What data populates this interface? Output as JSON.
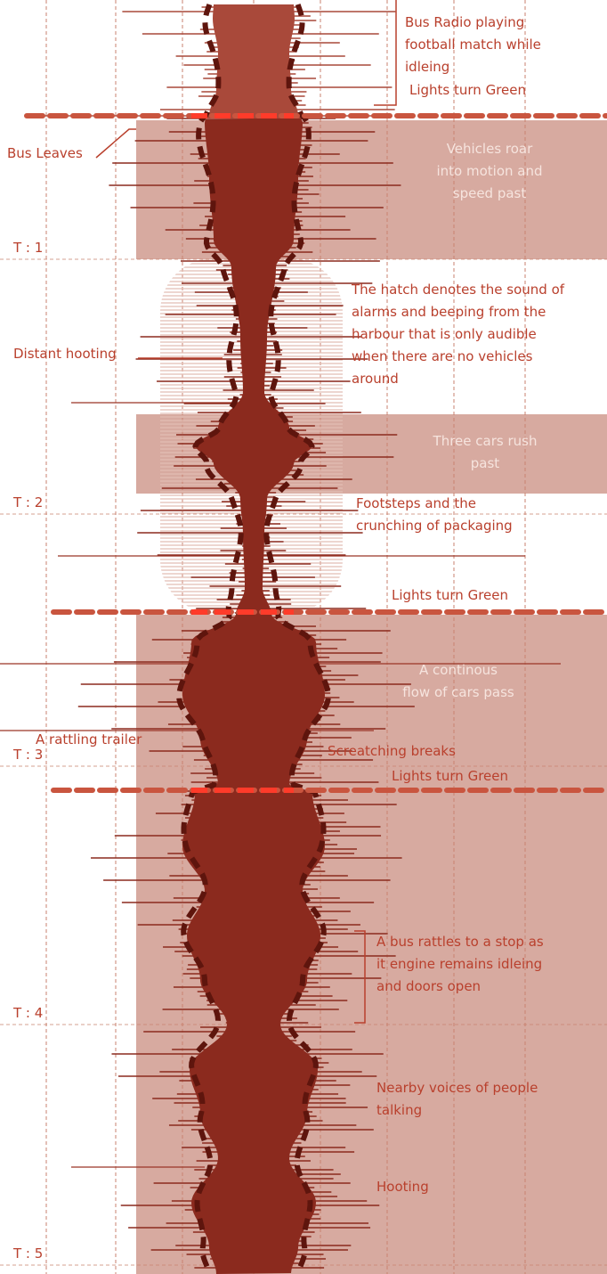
{
  "annotations": [
    {
      "lines": [
        "Bus Radio playing",
        "football match while",
        "idleing"
      ]
    },
    {
      "lines": [
        "Lights turn Green"
      ]
    },
    {
      "lines": [
        "Bus Leaves"
      ]
    },
    {
      "lines": [
        "Vehicles roar",
        "into motion and",
        "speed past"
      ]
    },
    {
      "lines": [
        "The hatch denotes the sound of",
        "alarms and beeping from the",
        "harbour that is only audible",
        "when there are no vehicles",
        "around"
      ]
    },
    {
      "lines": [
        "Distant hooting"
      ]
    },
    {
      "lines": [
        "Three cars rush",
        "past"
      ]
    },
    {
      "lines": [
        "Footsteps and the",
        "crunching of packaging"
      ]
    },
    {
      "lines": [
        "Lights turn Green"
      ]
    },
    {
      "lines": [
        "A rattling trailer"
      ]
    },
    {
      "lines": [
        "Screatching breaks"
      ]
    },
    {
      "lines": [
        "Lights turn Green"
      ]
    },
    {
      "lines": [
        "A continous",
        "flow of cars pass"
      ]
    },
    {
      "lines": [
        "A bus rattles to a stop as",
        "it engine remains idleing",
        "and doors open"
      ]
    },
    {
      "lines": [
        "Nearby voices of people",
        "talking"
      ]
    },
    {
      "lines": [
        "Hooting"
      ]
    }
  ],
  "time_markers": [
    "T : 1",
    "T : 2",
    "T : 3",
    "T : 4",
    "T : 5"
  ]
}
